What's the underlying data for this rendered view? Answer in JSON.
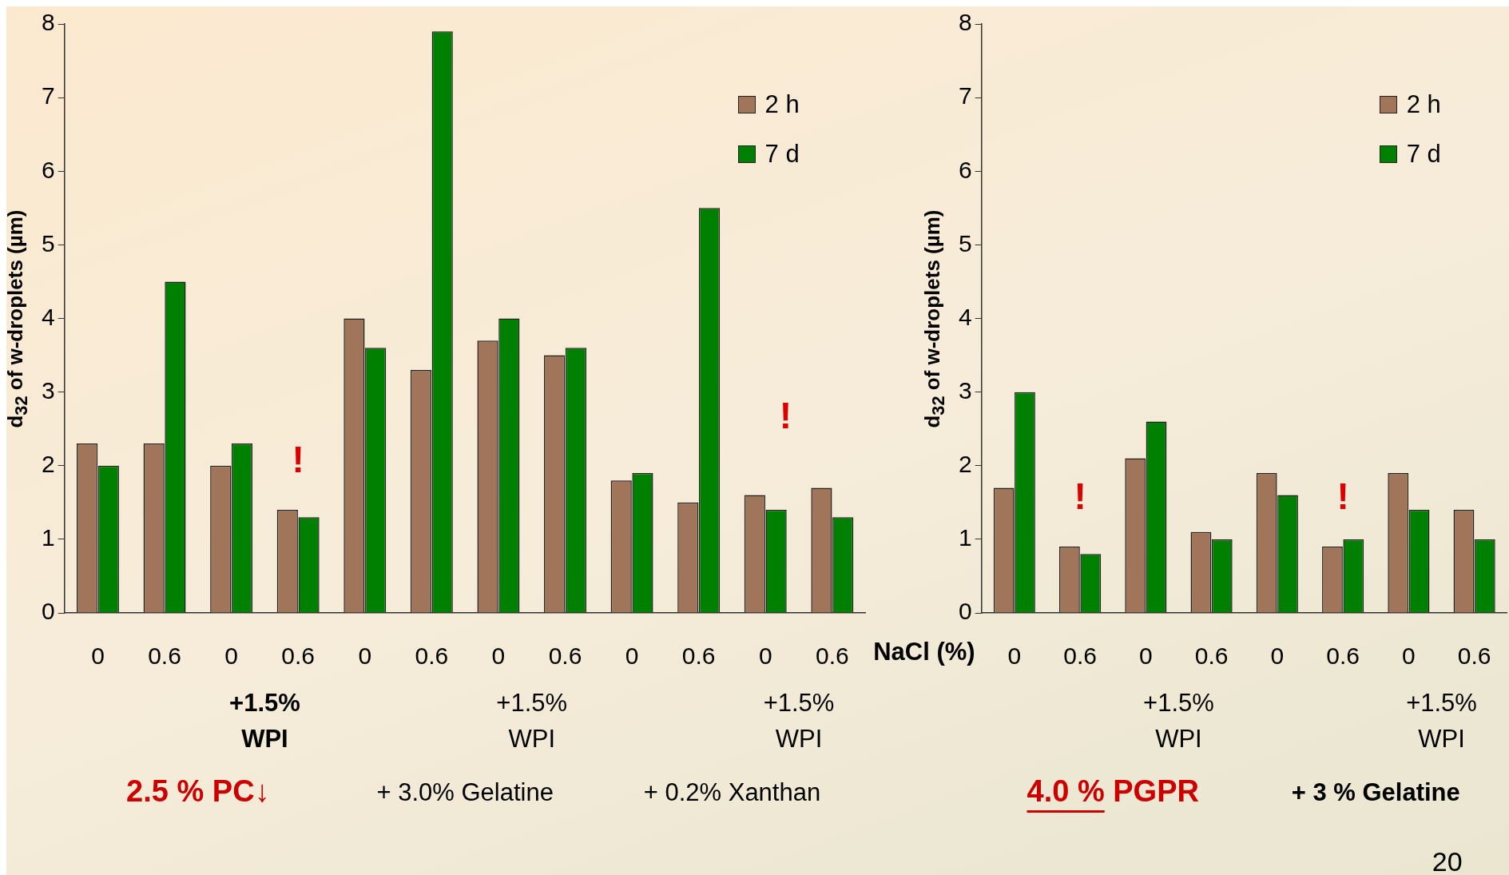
{
  "chart_data": [
    {
      "type": "bar",
      "ylabel": "d$_{32}$ of w-droplets (µm)",
      "categories": [
        "0",
        "0.6",
        "0",
        "0.6",
        "0",
        "0.6",
        "0",
        "0.6",
        "0",
        "0.6",
        "0",
        "0.6"
      ],
      "ylim": [
        0,
        8
      ],
      "yticks": [
        0,
        1,
        2,
        3,
        4,
        5,
        6,
        7,
        8
      ],
      "legend": "top right",
      "series": [
        {
          "name": "2 h",
          "color": "#a0755a",
          "values": [
            2.3,
            2.3,
            2.0,
            1.4,
            4.0,
            3.3,
            3.7,
            3.5,
            1.8,
            1.5,
            1.6,
            1.7
          ]
        },
        {
          "name": "7 d",
          "color": "#008000",
          "values": [
            2.0,
            4.5,
            2.3,
            1.3,
            3.6,
            7.9,
            4.0,
            3.6,
            1.9,
            5.5,
            1.4,
            1.3
          ]
        }
      ],
      "annotations": [
        "+1.5% WPI",
        "+1.5% WPI",
        "+1.5% WPI",
        "2.5 % PC↓",
        "+ 3.0% Gelatine",
        "+ 0.2% Xanthan",
        "!",
        "!"
      ]
    },
    {
      "type": "bar",
      "ylabel": "d$_{32}$ of w-droplets (µm)",
      "categories": [
        "0",
        "0.6",
        "0",
        "0.6",
        "0",
        "0.6",
        "0",
        "0.6"
      ],
      "ylim": [
        0,
        8
      ],
      "yticks": [
        0,
        1,
        2,
        3,
        4,
        5,
        6,
        7,
        8
      ],
      "legend": "top right",
      "series": [
        {
          "name": "2 h",
          "color": "#a0755a",
          "values": [
            1.7,
            0.9,
            2.1,
            1.1,
            1.9,
            0.9,
            1.9,
            1.4
          ]
        },
        {
          "name": "7 d",
          "color": "#008000",
          "values": [
            3.0,
            0.8,
            2.6,
            1.0,
            1.6,
            1.0,
            1.4,
            1.0
          ]
        }
      ],
      "annotations": [
        "NaCl (%)",
        "+1.5% WPI",
        "+1.5% WPI",
        "4.0 % PGPR",
        "+ 3 % Gelatine",
        "20",
        "!",
        "!"
      ]
    }
  ]
}
